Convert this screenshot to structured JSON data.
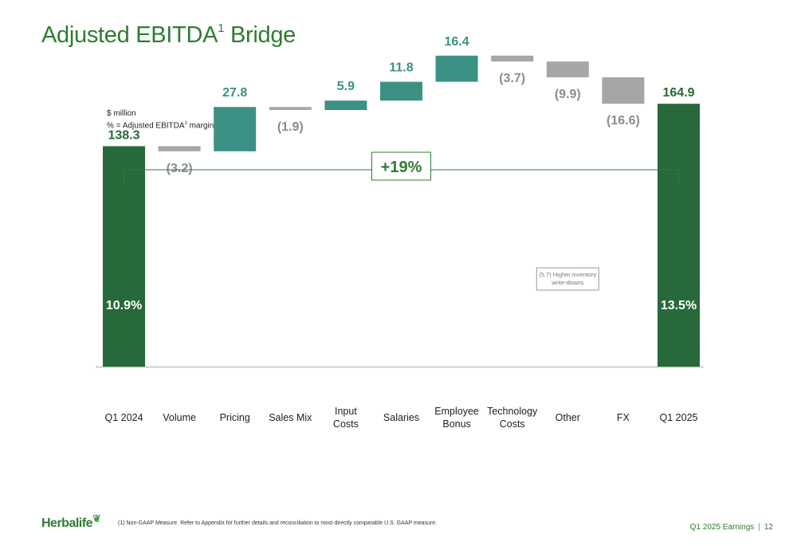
{
  "page": {
    "title_main": "Adjusted EBITDA",
    "title_sup": "1",
    "title_rest": " Bridge",
    "units_line1": "$ million",
    "units_line2_a": "% = Adjusted EBITDA",
    "units_line2_sup": "1",
    "units_line2_b": " margin"
  },
  "footer": {
    "logo": "Herbalife",
    "footnote": "(1)  Non-GAAP Measure. Refer to Appendix for further details and reconciliation to most directly comparable U.S. GAAP measure.",
    "deck": "Q1 2025 Earnings",
    "separator": "|",
    "page_number": "12"
  },
  "colors": {
    "total": "#27693a",
    "increase": "#3b9184",
    "decrease": "#a6a6a6",
    "title": "#2e7d32"
  },
  "chart_data": {
    "type": "waterfall",
    "categories": [
      "Q1 2024",
      "Volume",
      "Pricing",
      "Sales Mix",
      "Input Costs",
      "Salaries",
      "Employee Bonus",
      "Technology Costs",
      "Other",
      "FX",
      "Q1 2025"
    ],
    "category_lines": [
      [
        "Q1 2024"
      ],
      [
        "Volume"
      ],
      [
        "Pricing"
      ],
      [
        "Sales Mix"
      ],
      [
        "Input",
        "Costs"
      ],
      [
        "Salaries"
      ],
      [
        "Employee",
        "Bonus"
      ],
      [
        "Technology",
        "Costs"
      ],
      [
        "Other"
      ],
      [
        "FX"
      ],
      [
        "Q1 2025"
      ]
    ],
    "values": [
      138.3,
      -3.2,
      27.8,
      -1.9,
      5.9,
      11.8,
      16.4,
      -3.7,
      -9.9,
      -16.6,
      164.9
    ],
    "kinds": [
      "total",
      "decrease",
      "increase",
      "decrease",
      "increase",
      "increase",
      "increase",
      "decrease",
      "decrease",
      "decrease",
      "total"
    ],
    "data_labels": [
      "138.3",
      "(3.2)",
      "27.8",
      "(1.9)",
      "5.9",
      "11.8",
      "16.4",
      "(3.7)",
      "(9.9)",
      "(16.6)",
      "164.9"
    ],
    "margins": [
      {
        "index": 0,
        "label": "10.9%"
      },
      {
        "index": 10,
        "label": "13.5%"
      }
    ],
    "change_label": "+19%",
    "annotation": {
      "index": 8,
      "text_line1": "(5.7)  Higher inventory",
      "text_line2": "write-downs"
    },
    "ylim": [
      0,
      200
    ]
  }
}
